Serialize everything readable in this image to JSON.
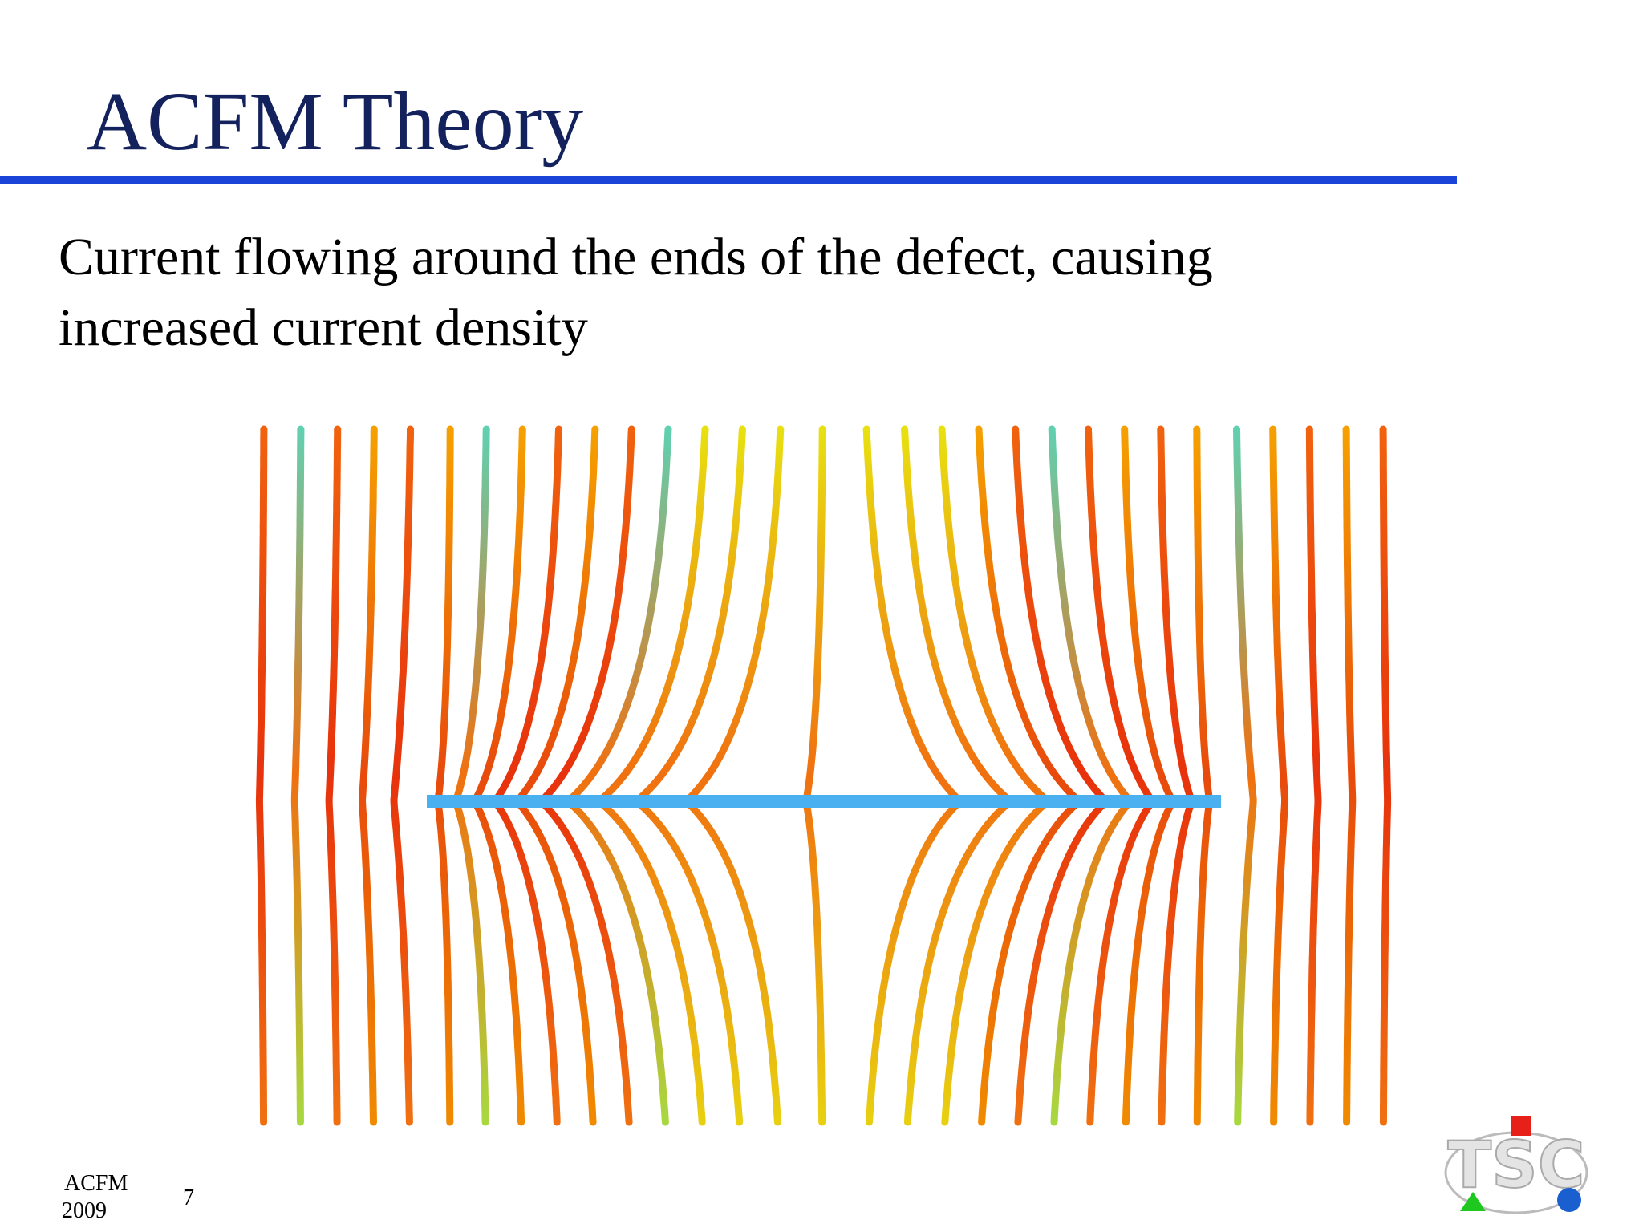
{
  "header": {
    "title": "ACFM Theory"
  },
  "body": {
    "lines": [
      "Current flowing around the ends of the defect, causing",
      "increased current density"
    ]
  },
  "footer": {
    "label": "ACFM",
    "year": "2009",
    "page": "7"
  },
  "logo": {
    "text": "TSC"
  }
}
